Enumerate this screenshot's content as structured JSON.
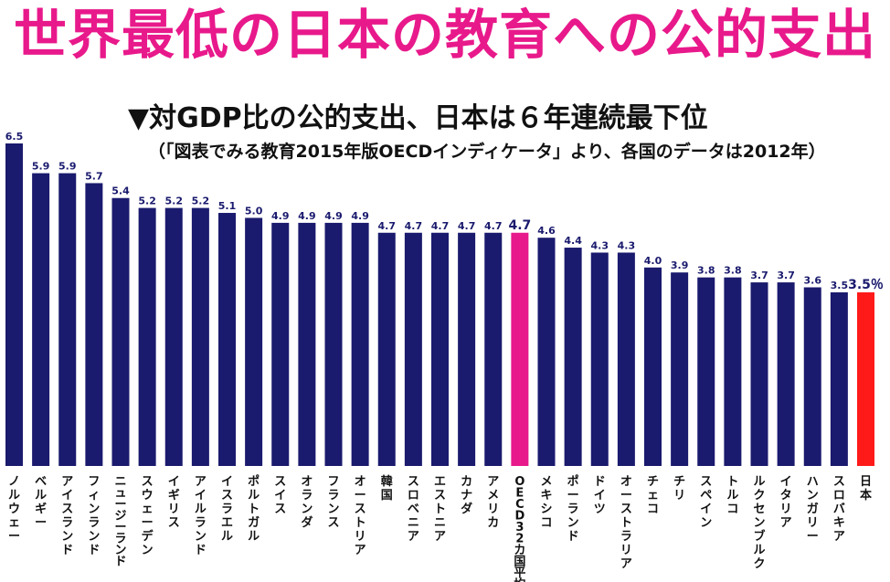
{
  "title": "世界最低の日本の教育への公的支出",
  "subtitle": "▼対GDP比の公的支出、日本は６年連続最下位",
  "source": "（「図表でみる教育2015年版OECDインディケータ」より、各国のデータは2012年）",
  "colors": {
    "title": "#e8198b",
    "bar": "#1a1a6e",
    "oecd_bar": "#e8198b",
    "japan_bar": "#ff1a1a"
  },
  "chart_data": {
    "type": "bar",
    "title": "世界最低の日本の教育への公的支出",
    "ylabel": "",
    "xlabel": "",
    "ylim": [
      0,
      6.5
    ],
    "categories": [
      "ノルウェー",
      "ベルギー",
      "アイスランド",
      "フィンランド",
      "ニュージーランド",
      "スウェーデン",
      "イギリス",
      "アイルランド",
      "イスラエル",
      "ポルトガル",
      "スイス",
      "オランダ",
      "フランス",
      "オーストリア",
      "韓国",
      "スロベニア",
      "エストニア",
      "カナダ",
      "アメリカ",
      "OECD32カ国平均",
      "メキシコ",
      "ポーランド",
      "ドイツ",
      "オーストラリア",
      "チェコ",
      "チリ",
      "スペイン",
      "トルコ",
      "ルクセンブルク",
      "イタリア",
      "ハンガリー",
      "スロバキア",
      "日本"
    ],
    "values": [
      6.5,
      5.9,
      5.9,
      5.7,
      5.4,
      5.2,
      5.2,
      5.2,
      5.1,
      5.0,
      4.9,
      4.9,
      4.9,
      4.9,
      4.7,
      4.7,
      4.7,
      4.7,
      4.7,
      4.7,
      4.6,
      4.4,
      4.3,
      4.3,
      4.0,
      3.9,
      3.8,
      3.8,
      3.7,
      3.7,
      3.6,
      3.5,
      3.5
    ],
    "value_labels": [
      "6.5",
      "5.9",
      "5.9",
      "5.7",
      "5.4",
      "5.2",
      "5.2",
      "5.2",
      "5.1",
      "5.0",
      "4.9",
      "4.9",
      "4.9",
      "4.9",
      "4.7",
      "4.7",
      "4.7",
      "4.7",
      "4.7",
      "4.7",
      "4.6",
      "4.4",
      "4.3",
      "4.3",
      "4.0",
      "3.9",
      "3.8",
      "3.8",
      "3.7",
      "3.7",
      "3.6",
      "3.5",
      "3.5％"
    ],
    "highlight": {
      "OECD32カ国平均": "oecd",
      "日本": "japan"
    }
  }
}
